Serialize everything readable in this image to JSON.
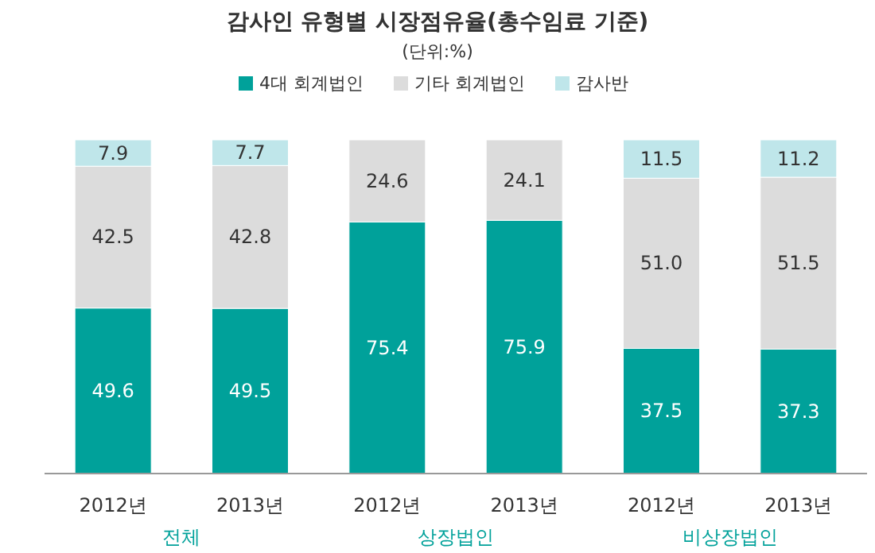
{
  "chart_data": {
    "type": "bar",
    "stacked": true,
    "title": "감사인 유형별 시장점유율(총수임료 기준)",
    "subtitle": "(단위:%)",
    "categories": [
      "2012년",
      "2013년",
      "2012년",
      "2013년",
      "2012년",
      "2013년"
    ],
    "series": [
      {
        "name": "4대 회계법인",
        "color": "#00a19a",
        "values": [
          49.6,
          49.5,
          75.4,
          75.9,
          37.5,
          37.3
        ],
        "value_labels": [
          "49.6",
          "49.5",
          "75.4",
          "75.9",
          "37.5",
          "37.3"
        ]
      },
      {
        "name": "기타 회계법인",
        "color": "#dcdcdc",
        "values": [
          42.5,
          42.8,
          24.6,
          24.1,
          51.0,
          51.5
        ],
        "value_labels": [
          "42.5",
          "42.8",
          "24.6",
          "24.1",
          "51.0",
          "51.5"
        ]
      },
      {
        "name": "감사반",
        "color": "#bfe6ea",
        "values": [
          7.9,
          7.7,
          null,
          null,
          11.5,
          11.2
        ],
        "value_labels": [
          "7.9",
          "7.7",
          null,
          null,
          "11.5",
          "11.2"
        ]
      }
    ],
    "annotations": [
      "전체",
      "상장법인",
      "비상장법인"
    ],
    "legend": "top"
  }
}
